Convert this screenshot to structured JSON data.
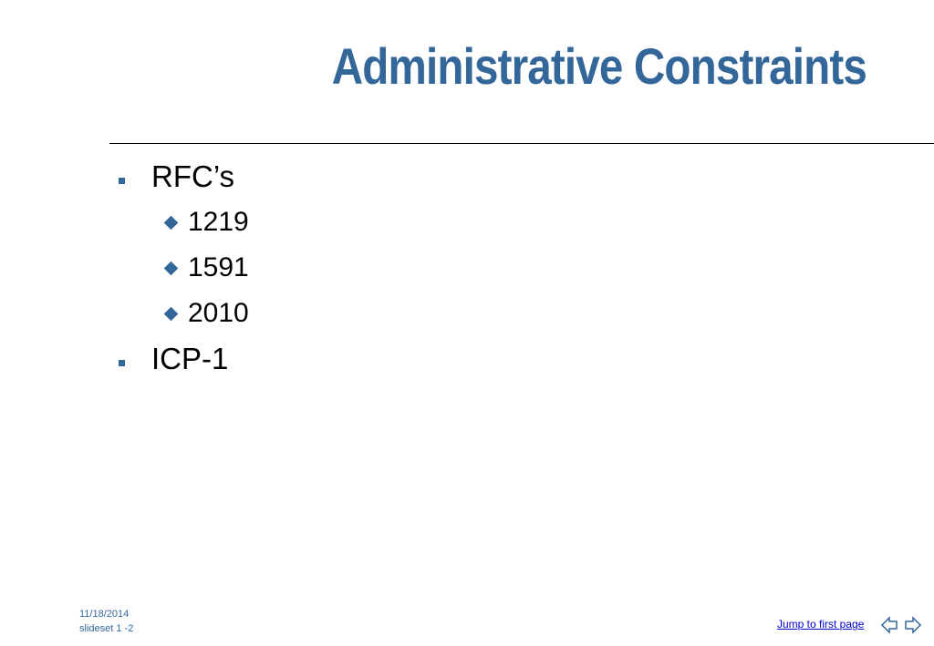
{
  "header": {
    "title": "Administrative Constraints"
  },
  "bullets": [
    {
      "text": "RFC’s",
      "children": [
        "1219",
        "1591",
        "2010"
      ]
    },
    {
      "text": "ICP-1",
      "children": []
    }
  ],
  "footer": {
    "date": "11/18/2014",
    "slide": "slideset 1 -2",
    "link": "Jump to first page"
  }
}
